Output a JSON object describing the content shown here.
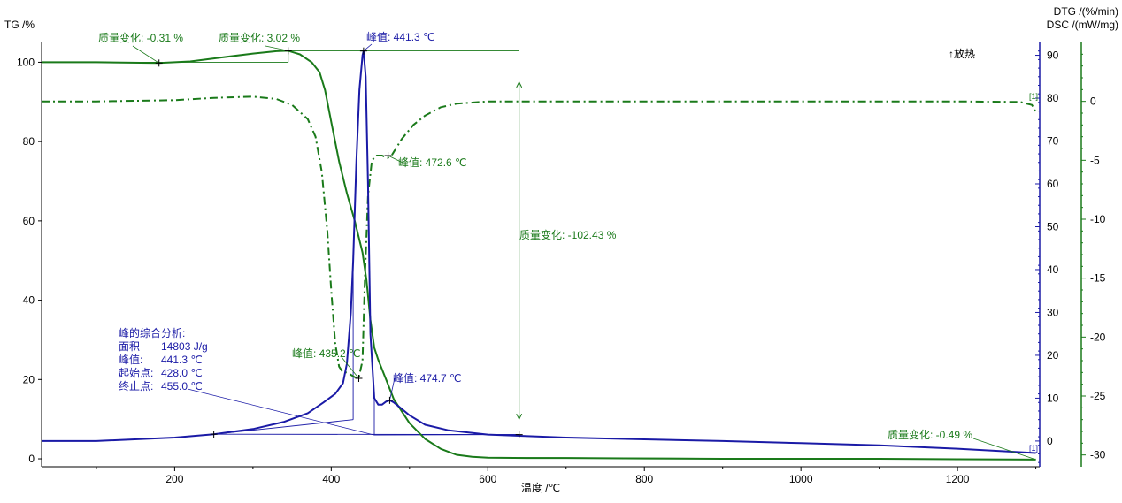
{
  "chart_data": {
    "type": "line",
    "xlabel": "温度 /℃",
    "x_ticks": [
      200,
      400,
      600,
      800,
      1000,
      1200
    ],
    "xlim": [
      30,
      1305
    ],
    "axes": {
      "tg": {
        "label": "TG /%",
        "ylim": [
          -2,
          105
        ],
        "ticks": [
          0,
          20,
          40,
          60,
          80,
          100
        ],
        "color": "#000000"
      },
      "dsc": {
        "label": "DSC /(mW/mg)",
        "ylim": [
          -6,
          93
        ],
        "ticks": [
          0,
          10,
          20,
          30,
          40,
          50,
          60,
          70,
          80,
          90
        ],
        "color": "#1a1aa6"
      },
      "dtg": {
        "label": "DTG /(%/min)",
        "ylim": [
          -31,
          5
        ],
        "ticks": [
          0,
          -5,
          -10,
          -15,
          -20,
          -25,
          -30
        ],
        "color": "#1a7a1a"
      }
    },
    "exo_label": "↑放热",
    "series": [
      {
        "key": "tg",
        "axis": "tg",
        "color": "#1a7a1a",
        "style": "solid",
        "x": [
          30,
          100,
          180,
          220,
          260,
          300,
          330,
          345,
          360,
          375,
          385,
          392,
          400,
          410,
          420,
          430,
          440,
          445,
          450,
          455,
          460,
          470,
          480,
          500,
          520,
          540,
          560,
          580,
          600,
          650,
          700,
          800,
          900,
          1000,
          1100,
          1200,
          1300
        ],
        "y": [
          100,
          100,
          99.8,
          100.2,
          101.2,
          102.2,
          102.8,
          102.9,
          102.0,
          100.0,
          97.5,
          93.0,
          85.0,
          75.0,
          67.0,
          60.0,
          52.0,
          45.0,
          35.0,
          28.0,
          25.0,
          20.0,
          15.0,
          9.0,
          5.0,
          2.5,
          1.0,
          0.5,
          0.3,
          0.2,
          0.2,
          0.1,
          0.0,
          0.0,
          0.0,
          -0.1,
          -0.2
        ]
      },
      {
        "key": "dtg",
        "axis": "dtg",
        "color": "#1a7a1a",
        "style": "dashdot",
        "x": [
          30,
          100,
          200,
          250,
          300,
          330,
          350,
          370,
          380,
          388,
          395,
          400,
          405,
          410,
          415,
          420,
          425,
          430,
          435,
          440,
          443,
          447,
          452,
          458,
          465,
          472,
          478,
          490,
          505,
          520,
          540,
          560,
          580,
          600,
          650,
          700,
          800,
          900,
          1000,
          1100,
          1200,
          1280,
          1295,
          1300
        ],
        "y": [
          0,
          0,
          0.1,
          0.3,
          0.4,
          0.2,
          -0.3,
          -1.5,
          -3.0,
          -6.0,
          -11.0,
          -16.0,
          -20.5,
          -22.5,
          -23.0,
          -23.0,
          -23.2,
          -23.4,
          -23.5,
          -22.0,
          -15.0,
          -8.0,
          -5.0,
          -4.6,
          -4.6,
          -4.8,
          -4.5,
          -3.2,
          -2.0,
          -1.2,
          -0.5,
          -0.2,
          -0.1,
          0.0,
          0.0,
          0.0,
          0.0,
          0.0,
          0.0,
          0.0,
          0.0,
          -0.05,
          -0.3,
          -0.9
        ]
      },
      {
        "key": "dsc",
        "axis": "dsc",
        "color": "#1a1aa6",
        "style": "solid",
        "x": [
          30,
          100,
          200,
          250,
          300,
          340,
          370,
          390,
          405,
          415,
          420,
          425,
          428,
          432,
          436,
          440,
          441.3,
          444,
          447,
          450,
          455,
          460,
          465,
          470,
          474.7,
          480,
          490,
          500,
          520,
          550,
          600,
          700,
          800,
          900,
          1000,
          1100,
          1200,
          1300
        ],
        "y": [
          0,
          0,
          0.8,
          1.6,
          2.8,
          4.5,
          6.5,
          9.0,
          11.0,
          13.5,
          18.0,
          30.0,
          42.0,
          65.0,
          82.0,
          90.0,
          91.0,
          85.0,
          60.0,
          25.0,
          10.0,
          8.5,
          8.5,
          9.2,
          9.5,
          9.0,
          7.5,
          6.0,
          3.8,
          2.5,
          1.5,
          0.8,
          0.4,
          0.0,
          -0.5,
          -1.0,
          -1.8,
          -2.8
        ]
      }
    ],
    "guide_lines": [
      {
        "axis": "tg",
        "color": "#1a7a1a",
        "x": [
          30,
          180,
          260,
          345
        ],
        "y": [
          100,
          100,
          100,
          100
        ]
      },
      {
        "axis": "tg",
        "color": "#1a7a1a",
        "x": [
          345,
          640
        ],
        "y": [
          102.9,
          102.9
        ]
      },
      {
        "axis": "tg",
        "color": "#1a7a1a",
        "x": [
          345,
          345
        ],
        "y": [
          100,
          102.9
        ]
      },
      {
        "axis": "tg",
        "color": "#1a7a1a",
        "x": [
          640,
          1300
        ],
        "y": [
          0.3,
          -0.2
        ]
      },
      {
        "axis": "dsc",
        "color": "#1a1aa6",
        "x": [
          250,
          428
        ],
        "y": [
          1.6,
          5.0
        ]
      },
      {
        "axis": "dsc",
        "color": "#1a1aa6",
        "x": [
          428,
          428
        ],
        "y": [
          5.0,
          44.0
        ]
      },
      {
        "axis": "dsc",
        "color": "#1a1aa6",
        "x": [
          455,
          455
        ],
        "y": [
          1.4,
          10.0
        ]
      },
      {
        "axis": "dsc",
        "color": "#1a1aa6",
        "x": [
          455,
          640
        ],
        "y": [
          1.4,
          1.5
        ]
      },
      {
        "axis": "dsc",
        "color": "#1a1aa6",
        "x": [
          250,
          640
        ],
        "y": [
          1.6,
          1.5
        ]
      }
    ],
    "mass_arrow": {
      "axis": "tg",
      "color": "#1a7a1a",
      "x": 640,
      "y_top": 95,
      "y_bottom": 10
    },
    "markers": [
      {
        "axis": "tg",
        "color": "#1a7a1a",
        "x": 180,
        "y": 99.8
      },
      {
        "axis": "tg",
        "color": "#1a7a1a",
        "x": 345,
        "y": 102.9
      },
      {
        "axis": "dtg",
        "color": "#1a7a1a",
        "x": 472.6,
        "y": -4.6
      },
      {
        "axis": "dtg",
        "color": "#1a7a1a",
        "x": 435.2,
        "y": -23.5
      },
      {
        "axis": "dsc",
        "color": "#1a1aa6",
        "x": 441.3,
        "y": 91.0
      },
      {
        "axis": "dsc",
        "color": "#1a1aa6",
        "x": 474.7,
        "y": 9.5
      },
      {
        "axis": "dsc",
        "color": "#1a1aa6",
        "x": 250,
        "y": 1.6
      },
      {
        "axis": "dsc",
        "color": "#1a1aa6",
        "x": 640,
        "y": 1.5
      }
    ],
    "annotations": [
      {
        "key": "mass1",
        "text": "质量变化: -0.31 %",
        "color": "#1a7a1a",
        "anchor_axis": "tg",
        "ax": 180,
        "ay": 99.8
      },
      {
        "key": "mass2",
        "text": "质量变化: 3.02 %",
        "color": "#1a7a1a",
        "anchor_axis": "tg",
        "ax": 345,
        "ay": 102.9
      },
      {
        "key": "peak_dsc",
        "text": "峰值: 441.3 ℃",
        "color": "#1a1aa6",
        "anchor_axis": "dsc",
        "ax": 441.3,
        "ay": 91.0
      },
      {
        "key": "peak_dtg2",
        "text": "峰值: 472.6 ℃",
        "color": "#1a7a1a",
        "anchor_axis": "dtg",
        "ax": 472.6,
        "ay": -4.6
      },
      {
        "key": "mass3",
        "text": "质量变化: -102.43 %",
        "color": "#1a7a1a"
      },
      {
        "key": "peak_dtg1",
        "text": "峰值: 435.2 ℃",
        "color": "#1a7a1a",
        "anchor_axis": "dtg",
        "ax": 435.2,
        "ay": -23.5
      },
      {
        "key": "peak_dsc2",
        "text": "峰值: 474.7 ℃",
        "color": "#1a1aa6",
        "anchor_axis": "dsc",
        "ax": 474.7,
        "ay": 9.5
      },
      {
        "key": "mass4",
        "text": "质量变化: -0.49 %",
        "color": "#1a7a1a",
        "anchor_axis": "tg",
        "ax": 1300,
        "ay": -0.2
      },
      {
        "key": "bracket_dtg",
        "text": "[1]",
        "color": "#1a7a1a"
      },
      {
        "key": "bracket_dsc",
        "text": "[1]",
        "color": "#1a1aa6"
      }
    ],
    "peak_analysis": {
      "color": "#1a1aa6",
      "anchor_axis": "dsc",
      "ax": 455,
      "ay": 1.4,
      "title": "峰的综合分析:",
      "rows": [
        {
          "label": "面积",
          "value": "14803 J/g"
        },
        {
          "label": "峰值:",
          "value": "441.3 ℃"
        },
        {
          "label": "起始点:",
          "value": "428.0 ℃"
        },
        {
          "label": "终止点:",
          "value": "455.0 ℃"
        }
      ]
    }
  }
}
